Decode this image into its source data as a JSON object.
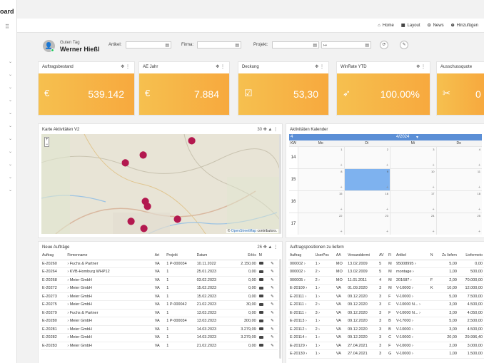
{
  "app": {
    "brand": "oard"
  },
  "topnav": {
    "home": "Home",
    "layout": "Layout",
    "news": "News",
    "add": "Hinzufügen"
  },
  "user": {
    "greeting": "Guten Tag",
    "name": "Werner Hießl"
  },
  "filters": {
    "artikel": "Artikel:",
    "firma": "Firma:",
    "projekt": "Projekt:"
  },
  "kpis": [
    {
      "title": "Auftragsbestand",
      "value": "539.142",
      "icon": "euro-icon"
    },
    {
      "title": "AE Jahr",
      "value": "7.884",
      "icon": "euro-icon"
    },
    {
      "title": "Deckung",
      "value": "53,30",
      "icon": "chart-icon"
    },
    {
      "title": "WinRate YTD",
      "value": "100.00%",
      "icon": "rocket-icon"
    },
    {
      "title": "Ausschussquote",
      "value": "0",
      "icon": "tools-icon"
    }
  ],
  "map": {
    "title": "Karte Aktivitäten V2",
    "count": "30",
    "attribution_prefix": "©",
    "attribution_link": "OpenStreetMap",
    "attribution_suffix": "contributors."
  },
  "calendar": {
    "title": "Aktivitäten Kalender",
    "week_label": "4",
    "month": "4/2024",
    "columns": [
      "KW",
      "Mo",
      "Di",
      "Mi",
      "Do"
    ],
    "weeks": [
      {
        "kw": "14",
        "days": [
          "1",
          "2",
          "3",
          "4"
        ]
      },
      {
        "kw": "15",
        "days": [
          "8",
          "9",
          "10",
          "11"
        ]
      },
      {
        "kw": "16",
        "days": [
          "15",
          "16",
          "17",
          "18"
        ]
      },
      {
        "kw": "17",
        "days": [
          "22",
          "23",
          "24",
          "25"
        ]
      }
    ]
  },
  "orders": {
    "title": "Neue Aufträge",
    "count": "26",
    "columns": [
      "Auftrag",
      "Firmenname",
      "Art",
      "Projekt",
      "Datum",
      "Erlös",
      "M"
    ],
    "rows": [
      [
        "E-20260",
        "Fuchs & Partner",
        "VA",
        "1",
        "P-000034",
        "10.11.2022",
        "2.150,00"
      ],
      [
        "E-20264",
        "KVB-Homburg WHP12",
        "VA",
        "1",
        "",
        "25.01.2023",
        "0,00"
      ],
      [
        "E-20268",
        "Meier GmbH",
        "VA",
        "1",
        "",
        "03.02.2023",
        "0,00"
      ],
      [
        "E-20272",
        "Meier GmbH",
        "VA",
        "1",
        "",
        "15.02.2023",
        "0,00"
      ],
      [
        "E-20273",
        "Meier GmbH",
        "VA",
        "1",
        "",
        "15.02.2023",
        "0,00"
      ],
      [
        "E-20275",
        "Meier GmbH",
        "VA",
        "1",
        "P-000042",
        "21.02.2023",
        "30,00"
      ],
      [
        "E-20279",
        "Fuchs & Partner",
        "VA",
        "1",
        "",
        "13.03.2023",
        "0,00"
      ],
      [
        "E-20280",
        "Meier GmbH",
        "VA",
        "1",
        "P-000034",
        "13.03.2023",
        "300,00"
      ],
      [
        "E-20281",
        "Meier GmbH",
        "VA",
        "1",
        "",
        "14.03.2023",
        "3.279,09"
      ],
      [
        "E-20282",
        "Meier GmbH",
        "VA",
        "1",
        "",
        "14.03.2023",
        "3.279,09"
      ],
      [
        "E-20283",
        "Meier GmbH",
        "VA",
        "1",
        "",
        "21.02.2023",
        "0,00"
      ]
    ]
  },
  "positions": {
    "title": "Auftragspositionen zu liefern",
    "columns": [
      "Auftrag",
      "UserPos",
      "AA",
      "Versanddermi",
      "AV",
      "Fi",
      "Artikel",
      "N",
      "Zu liefern",
      "Liefermeto"
    ],
    "rows": [
      [
        "000002",
        "1",
        "MO",
        "13.02.2009",
        "5",
        "M",
        "95008995",
        "",
        "5,00",
        "0,00"
      ],
      [
        "000002",
        "2",
        "MO",
        "13.02.2009",
        "5",
        "M",
        "montage",
        "",
        "1,00",
        "500,00"
      ],
      [
        "000005",
        "2",
        "MO",
        "11.01.2011",
        "4",
        "M",
        "201687",
        "F",
        "2,00",
        "70.000,00"
      ],
      [
        "E-20109",
        "1",
        "VA",
        "01.09.2020",
        "3",
        "M",
        "V-10000",
        "K",
        "10,00",
        "12.000,00"
      ],
      [
        "E-20111",
        "1",
        "VA",
        "09.12.2020",
        "3",
        "F",
        "V-10000",
        "",
        "5,00",
        "7.500,00"
      ],
      [
        "E-20111",
        "2",
        "VA",
        "09.12.2020",
        "3",
        "F",
        "V-10000 N...",
        "",
        "3,00",
        "4.500,00"
      ],
      [
        "E-20111",
        "3",
        "VA",
        "09.12.2020",
        "3",
        "F",
        "V-10000 N...",
        "",
        "3,00",
        "4.050,00"
      ],
      [
        "E-20113",
        "1",
        "VA",
        "09.12.2020",
        "3",
        "B",
        "V-17000",
        "",
        "5,00",
        "2.500,00"
      ],
      [
        "E-20112",
        "2",
        "VA",
        "09.12.2020",
        "3",
        "B",
        "V-10000",
        "",
        "3,00",
        "4.500,00"
      ],
      [
        "E-20114",
        "1",
        "VA",
        "09.12.2020",
        "3",
        "C",
        "V-10000",
        "",
        "20,00",
        "29.996,40"
      ],
      [
        "E-20129",
        "1",
        "VA",
        "27.04.2021",
        "3",
        "F",
        "V-10000",
        "",
        "2,00",
        "3.000,00"
      ],
      [
        "E-20130",
        "1",
        "VA",
        "27.04.2021",
        "3",
        "G",
        "V-10000",
        "",
        "1,00",
        "1.500,00"
      ]
    ]
  }
}
